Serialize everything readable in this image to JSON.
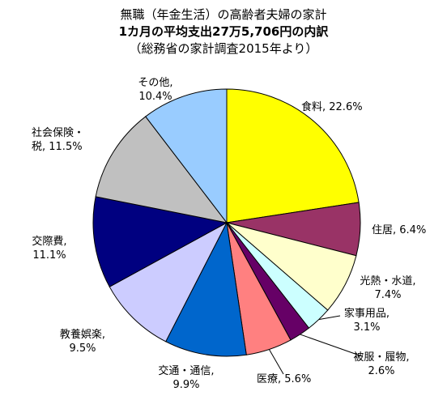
{
  "chart_data": {
    "type": "pie",
    "title_lines": [
      "無職（年金生活）の高齢者夫婦の家計",
      "1カ月の平均支出27万5,706円の内訳",
      "（総務省の家計調査2015年より）"
    ],
    "slices": [
      {
        "name": "食料",
        "value": 22.6,
        "label": "食料, 22.6%",
        "color": "#FFFF00"
      },
      {
        "name": "住居",
        "value": 6.4,
        "label": "住居, 6.4%",
        "color": "#993366"
      },
      {
        "name": "光熱・水道",
        "value": 7.4,
        "label_lines": [
          "光熱・水道,",
          "7.4%"
        ],
        "color": "#FFFFCC"
      },
      {
        "name": "家事用品",
        "value": 3.1,
        "label_lines": [
          "家事用品,",
          "3.1%"
        ],
        "color": "#CCFFFF"
      },
      {
        "name": "被服・履物",
        "value": 2.6,
        "label_lines": [
          "被服・履物,",
          "2.6%"
        ],
        "color": "#660066"
      },
      {
        "name": "医療",
        "value": 5.6,
        "label": "医療, 5.6%",
        "color": "#FF8080"
      },
      {
        "name": "交通・通信",
        "value": 9.9,
        "label_lines": [
          "交通・通信,",
          "9.9%"
        ],
        "color": "#0066CC"
      },
      {
        "name": "教養娯楽",
        "value": 9.5,
        "label_lines": [
          "教養娯楽,",
          "9.5%"
        ],
        "color": "#CCCCFF"
      },
      {
        "name": "交際費",
        "value": 11.1,
        "label_lines": [
          "交際費,",
          "11.1%"
        ],
        "color": "#000080"
      },
      {
        "name": "社会保険・税",
        "value": 11.5,
        "label_lines": [
          "社会保険・",
          "税, 11.5%"
        ],
        "color": "#C0C0C0"
      },
      {
        "name": "その他",
        "value": 10.4,
        "label_lines": [
          "その他,",
          "10.4%"
        ],
        "color": "#99CCFF"
      }
    ]
  }
}
